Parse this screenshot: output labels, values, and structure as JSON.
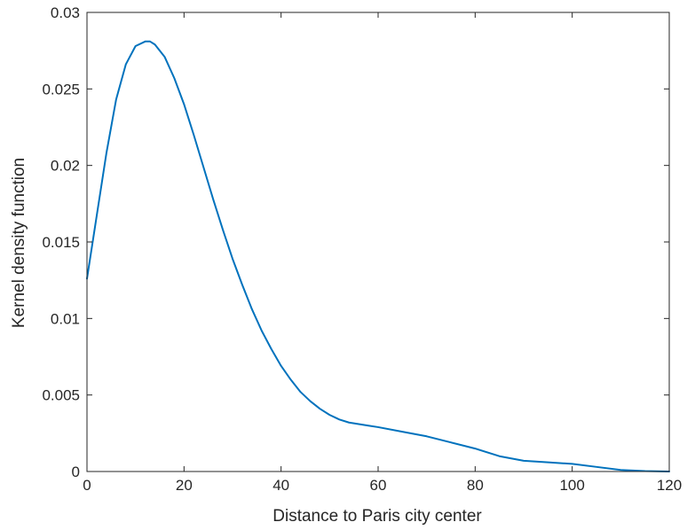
{
  "chart_data": {
    "type": "line",
    "title": "",
    "xlabel": "Distance to Paris city center",
    "ylabel": "Kernel density function",
    "xlim": [
      0,
      120
    ],
    "ylim": [
      0,
      0.03
    ],
    "xticks": [
      0,
      20,
      40,
      60,
      80,
      100,
      120
    ],
    "xtick_labels": [
      "0",
      "20",
      "40",
      "60",
      "80",
      "100",
      "120"
    ],
    "yticks": [
      0,
      0.005,
      0.01,
      0.015,
      0.02,
      0.025,
      0.03
    ],
    "ytick_labels": [
      "0",
      "0.005",
      "0.01",
      "0.015",
      "0.02",
      "0.025",
      "0.03"
    ],
    "grid": false,
    "box": true,
    "series": [
      {
        "color": "#0072BD",
        "x": [
          0,
          2,
          4,
          6,
          8,
          10,
          12,
          13,
          14,
          16,
          18,
          20,
          22,
          24,
          26,
          28,
          30,
          32,
          34,
          36,
          38,
          40,
          42,
          44,
          46,
          48,
          50,
          52,
          54,
          56,
          58,
          60,
          65,
          70,
          75,
          80,
          85,
          90,
          95,
          100,
          105,
          110,
          115,
          120
        ],
        "y": [
          0.0126,
          0.0167,
          0.0208,
          0.0243,
          0.0266,
          0.0278,
          0.0281,
          0.0281,
          0.0279,
          0.0271,
          0.0257,
          0.024,
          0.022,
          0.0199,
          0.0178,
          0.0158,
          0.0139,
          0.0122,
          0.0106,
          0.0092,
          0.008,
          0.0069,
          0.006,
          0.0052,
          0.0046,
          0.0041,
          0.0037,
          0.0034,
          0.0032,
          0.0031,
          0.003,
          0.0029,
          0.0026,
          0.0023,
          0.0019,
          0.0015,
          0.001,
          0.0007,
          0.0006,
          0.0005,
          0.0003,
          0.0001,
          3e-05,
          0.0
        ]
      }
    ]
  }
}
